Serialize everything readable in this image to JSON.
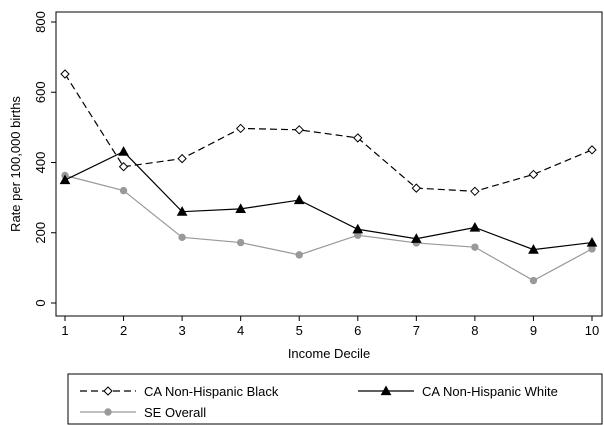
{
  "chart_data": {
    "type": "line",
    "xlabel": "Income Decile",
    "ylabel": "Rate per 100,000 births",
    "x": [
      1,
      2,
      3,
      4,
      5,
      6,
      7,
      8,
      9,
      10
    ],
    "xlim": [
      1,
      10
    ],
    "ylim": [
      0,
      800
    ],
    "yticks": [
      0,
      200,
      400,
      600,
      800
    ],
    "grid": false,
    "legend_position": "bottom",
    "series": [
      {
        "name": "CA Non-Hispanic Black",
        "values": [
          652,
          388,
          411,
          497,
          493,
          470,
          327,
          318,
          366,
          436
        ],
        "color": "#000000",
        "line_style": "dashed",
        "marker": "diamond-hollow"
      },
      {
        "name": "CA Non-Hispanic White",
        "values": [
          350,
          431,
          260,
          268,
          293,
          210,
          183,
          215,
          152,
          172
        ],
        "color": "#000000",
        "line_style": "solid",
        "marker": "triangle-filled"
      },
      {
        "name": "SE Overall",
        "values": [
          363,
          320,
          187,
          172,
          137,
          193,
          171,
          159,
          64,
          154
        ],
        "color": "#999999",
        "line_style": "solid",
        "marker": "circle-filled"
      }
    ]
  }
}
